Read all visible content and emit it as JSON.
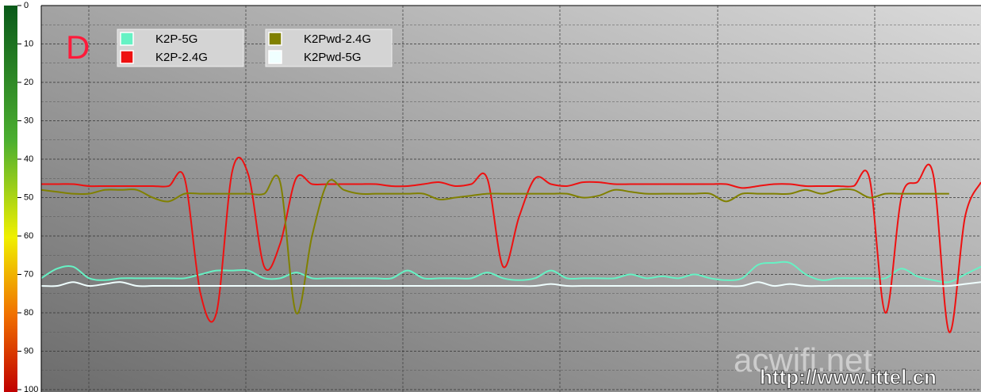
{
  "chart_data": {
    "type": "line",
    "annotations": [
      "D",
      "acwifi.net",
      "http://www.ittel.cn"
    ],
    "categories": [
      null,
      null,
      null,
      null,
      null,
      null,
      null,
      null,
      null,
      null,
      null,
      null,
      null,
      null,
      null,
      null,
      null,
      null,
      null,
      null,
      null,
      null,
      null,
      null,
      null,
      null,
      null,
      null,
      null,
      null,
      null,
      null,
      null,
      null,
      null,
      null,
      null,
      null,
      null,
      null,
      null,
      null,
      null,
      null,
      null,
      null,
      null,
      null,
      null,
      null,
      null,
      null,
      null,
      null,
      null,
      null,
      null,
      null,
      null,
      null
    ],
    "series": [
      {
        "name": "K2P-5G",
        "color": "#66f2c4",
        "values": [
          71,
          68.5,
          68,
          71,
          71.5,
          71,
          71,
          71,
          71,
          71,
          70,
          69,
          69,
          69,
          71,
          71,
          69.5,
          71,
          71,
          71,
          71,
          71,
          71,
          69,
          71,
          71,
          71,
          71,
          69.5,
          71,
          71.5,
          71,
          69,
          71,
          71,
          71,
          71,
          70,
          71,
          70.5,
          71,
          70,
          71,
          71.5,
          71,
          67.5,
          67,
          67,
          70,
          71.5,
          71,
          71,
          71,
          71,
          68.5,
          70.5,
          71.5,
          72,
          70,
          68
        ]
      },
      {
        "name": "K2P-2.4G",
        "color": "#ee1111",
        "values": [
          46.5,
          46.5,
          46.5,
          47,
          47,
          47,
          47,
          47,
          47,
          45,
          75,
          80,
          43,
          44,
          68,
          62,
          45,
          46.5,
          46.5,
          46.5,
          46.5,
          46.5,
          47,
          47,
          46.5,
          46,
          47,
          46.5,
          45,
          68,
          55,
          45,
          46.5,
          47,
          46,
          46,
          46.5,
          46.5,
          46.5,
          46.5,
          46.5,
          46.5,
          46.5,
          46.5,
          47.5,
          47,
          46.5,
          46.5,
          47,
          47,
          47,
          47,
          45,
          80,
          50,
          46,
          44,
          85,
          55,
          46
        ]
      },
      {
        "name": "K2Pwd-2.4G",
        "color": "#808000",
        "values": [
          48,
          48.5,
          49,
          49,
          48,
          48,
          48,
          50,
          51,
          49,
          49,
          49,
          49,
          49,
          49,
          46,
          80,
          60,
          46,
          48,
          49,
          49,
          49,
          49,
          49,
          50.5,
          50,
          49.5,
          49,
          49,
          49,
          49,
          49,
          49,
          50,
          49.5,
          48,
          48.5,
          49,
          49,
          49,
          49,
          49,
          51,
          49,
          49,
          49,
          49,
          48,
          49,
          48,
          48,
          50,
          49,
          49,
          49,
          49,
          49,
          null,
          null
        ]
      },
      {
        "name": "K2Pwd-5G",
        "color": "#f0ffff",
        "values": [
          73,
          73,
          72,
          73,
          72.5,
          72,
          73,
          73,
          73,
          73,
          73,
          73,
          73,
          73,
          73,
          73,
          73,
          73,
          73,
          73,
          73,
          73,
          73,
          73,
          73,
          73,
          73,
          73,
          73,
          73,
          73,
          73,
          72.5,
          73,
          73,
          73,
          73,
          73,
          73,
          73,
          73,
          73,
          73,
          73,
          73,
          72,
          73,
          72.5,
          73,
          73,
          73,
          73,
          73,
          73,
          73,
          73,
          73,
          73,
          72.5,
          72
        ]
      }
    ],
    "ylim": [
      100,
      0
    ],
    "yticks": [
      0,
      10,
      20,
      30,
      40,
      50,
      60,
      70,
      80,
      90,
      100
    ],
    "grid": true
  }
}
